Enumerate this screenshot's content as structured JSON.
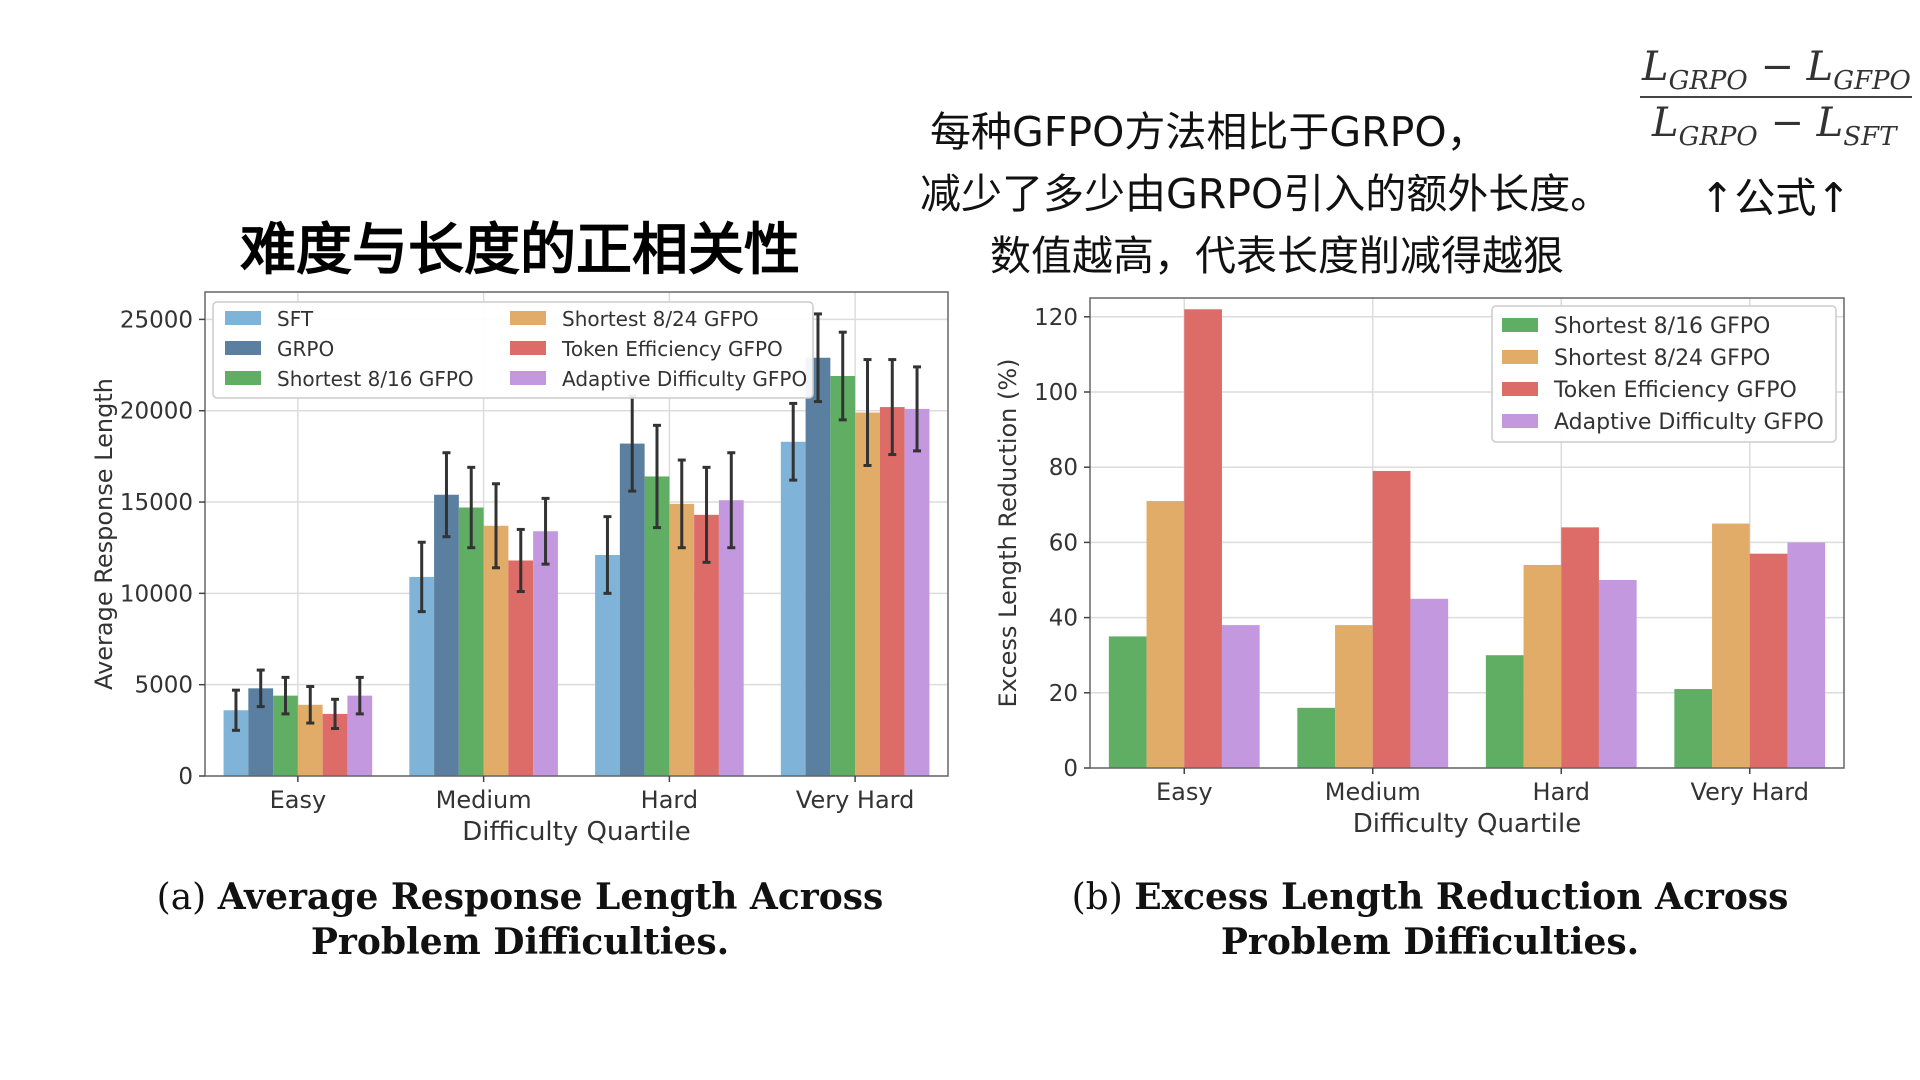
{
  "title": "难度与长度的正相关性",
  "annotation": {
    "line1": "每种GFPO方法相比于GRPO，",
    "line2": "减少了多少由GRPO引入的额外长度。",
    "line3": "数值越高，代表长度削减得越狠",
    "formula_label": "↑公式↑",
    "formula": {
      "num_a": "L",
      "num_a_sub": "GRPO",
      "num_b": "L",
      "num_b_sub": "GFPO",
      "den_a": "L",
      "den_a_sub": "GRPO",
      "den_b": "L",
      "den_b_sub": "SFT",
      "minus": "−"
    }
  },
  "captions": {
    "a_prefix": "(a)",
    "a_text": "Average Response Length Across Problem Difficulties.",
    "b_prefix": "(b)",
    "b_text": "Excess Length Reduction Across Problem Difficulties."
  },
  "chart_data": [
    {
      "type": "bar",
      "id": "a",
      "categories": [
        "Easy",
        "Medium",
        "Hard",
        "Very Hard"
      ],
      "xlabel": "Difficulty Quartile",
      "ylabel": "Average Response Length",
      "ylim": [
        0,
        26500
      ],
      "yticks": [
        0,
        5000,
        10000,
        15000,
        20000,
        25000
      ],
      "grid": true,
      "legend": "top, three-column",
      "series": [
        {
          "name": "SFT",
          "color": "#7fb3d8",
          "values": [
            3600,
            10900,
            12100,
            18300
          ],
          "err": [
            1100,
            1900,
            2100,
            2100
          ]
        },
        {
          "name": "GRPO",
          "color": "#5a7fa0",
          "values": [
            4800,
            15400,
            18200,
            22900
          ],
          "err": [
            1000,
            2300,
            2600,
            2400
          ]
        },
        {
          "name": "Shortest 8/16 GFPO",
          "color": "#5fae63",
          "values": [
            4400,
            14700,
            16400,
            21900
          ],
          "err": [
            1000,
            2200,
            2800,
            2400
          ]
        },
        {
          "name": "Shortest 8/24 GFPO",
          "color": "#e1ab68",
          "values": [
            3900,
            13700,
            14900,
            19900
          ],
          "err": [
            1000,
            2300,
            2400,
            2900
          ]
        },
        {
          "name": "Token Efficiency GFPO",
          "color": "#dd6b68",
          "values": [
            3400,
            11800,
            14300,
            20200
          ],
          "err": [
            800,
            1700,
            2600,
            2600
          ]
        },
        {
          "name": "Adaptive Difficulty GFPO",
          "color": "#c398de",
          "values": [
            4400,
            13400,
            15100,
            20100
          ],
          "err": [
            1000,
            1800,
            2600,
            2300
          ]
        }
      ]
    },
    {
      "type": "bar",
      "id": "b",
      "categories": [
        "Easy",
        "Medium",
        "Hard",
        "Very Hard"
      ],
      "xlabel": "Difficulty Quartile",
      "ylabel": "Excess Length Reduction (%)",
      "ylim": [
        0,
        125
      ],
      "yticks": [
        0,
        20,
        40,
        60,
        80,
        100,
        120
      ],
      "grid": true,
      "legend": "top-right",
      "series": [
        {
          "name": "Shortest 8/16 GFPO",
          "color": "#5fae63",
          "values": [
            35,
            16,
            30,
            21
          ]
        },
        {
          "name": "Shortest 8/24 GFPO",
          "color": "#e1ab68",
          "values": [
            71,
            38,
            54,
            65
          ]
        },
        {
          "name": "Token Efficiency GFPO",
          "color": "#dd6b68",
          "values": [
            122,
            79,
            64,
            57
          ]
        },
        {
          "name": "Adaptive Difficulty GFPO",
          "color": "#c398de",
          "values": [
            38,
            45,
            50,
            60
          ]
        }
      ]
    }
  ]
}
